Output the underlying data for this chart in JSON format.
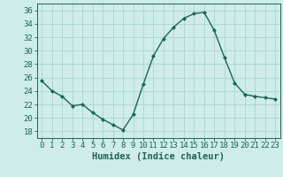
{
  "x": [
    0,
    1,
    2,
    3,
    4,
    5,
    6,
    7,
    8,
    9,
    10,
    11,
    12,
    13,
    14,
    15,
    16,
    17,
    18,
    19,
    20,
    21,
    22,
    23
  ],
  "y": [
    25.5,
    24.0,
    23.2,
    21.8,
    22.0,
    20.8,
    19.8,
    19.0,
    18.2,
    20.5,
    25.0,
    29.2,
    31.8,
    33.5,
    34.8,
    35.5,
    35.7,
    33.0,
    29.0,
    25.2,
    23.5,
    23.2,
    23.0,
    22.8
  ],
  "line_color": "#1a6655",
  "marker": "D",
  "marker_size": 2.0,
  "bg_color": "#ceecea",
  "grid_color": "#a8d5d2",
  "xlabel": "Humidex (Indice chaleur)",
  "ylim": [
    17,
    37
  ],
  "xlim": [
    -0.5,
    23.5
  ],
  "yticks": [
    18,
    20,
    22,
    24,
    26,
    28,
    30,
    32,
    34,
    36
  ],
  "xticks": [
    0,
    1,
    2,
    3,
    4,
    5,
    6,
    7,
    8,
    9,
    10,
    11,
    12,
    13,
    14,
    15,
    16,
    17,
    18,
    19,
    20,
    21,
    22,
    23
  ],
  "xlabel_fontsize": 7.5,
  "tick_fontsize": 6.5,
  "line_width": 1.0
}
